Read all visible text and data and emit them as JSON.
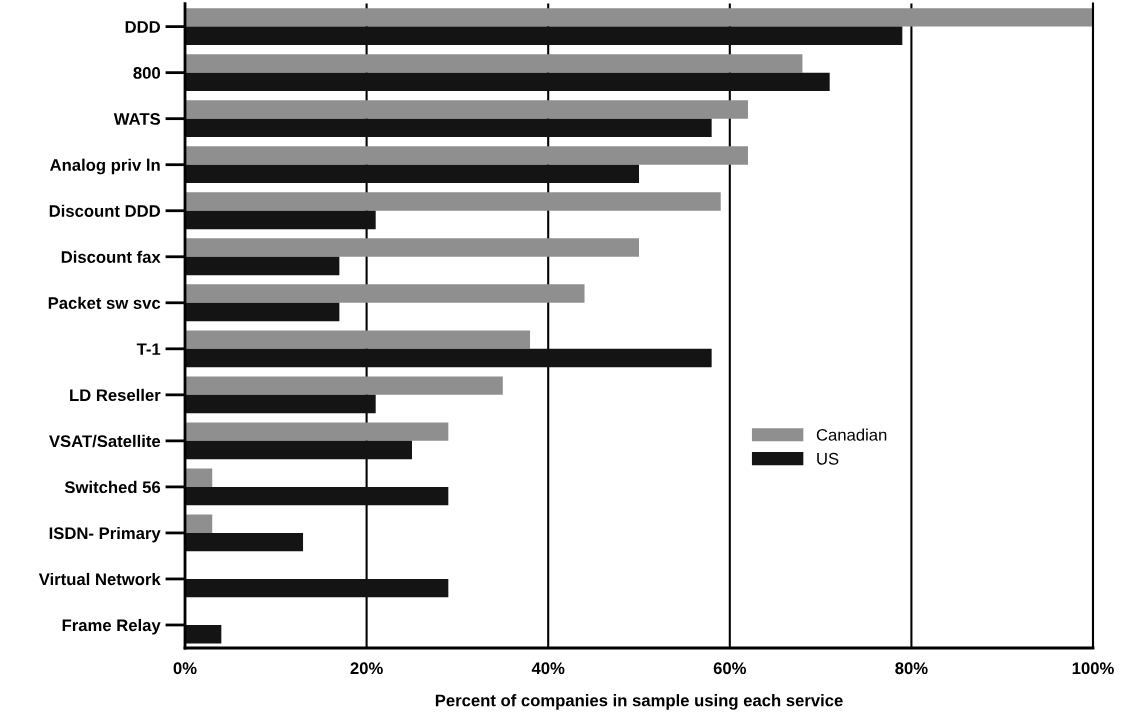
{
  "chart_data": {
    "type": "bar",
    "orientation": "horizontal",
    "xlabel": "Percent of companies in sample using each service",
    "categories": [
      "DDD",
      "800",
      "WATS",
      "Analog priv ln",
      "Discount DDD",
      "Discount fax",
      "Packet sw svc",
      "T-1",
      "LD Reseller",
      "VSAT/Satellite",
      "Switched 56",
      "ISDN- Primary",
      "Virtual Network",
      "Frame Relay"
    ],
    "series": [
      {
        "name": "Canadian",
        "color": "#8f8f8f",
        "values": [
          100,
          68,
          62,
          62,
          59,
          50,
          44,
          38,
          35,
          29,
          3,
          3,
          0,
          0
        ]
      },
      {
        "name": "US",
        "color": "#141414",
        "values": [
          79,
          71,
          58,
          50,
          21,
          17,
          17,
          58,
          21,
          25,
          29,
          13,
          29,
          4
        ]
      }
    ],
    "xlim": [
      0,
      100
    ],
    "xticks": [
      {
        "value": 0,
        "label": "0%"
      },
      {
        "value": 20,
        "label": "20%"
      },
      {
        "value": 40,
        "label": "40%"
      },
      {
        "value": 60,
        "label": "60%"
      },
      {
        "value": 80,
        "label": "80%"
      },
      {
        "value": 100,
        "label": "100%"
      }
    ],
    "grid": "x",
    "legend": "center right"
  }
}
